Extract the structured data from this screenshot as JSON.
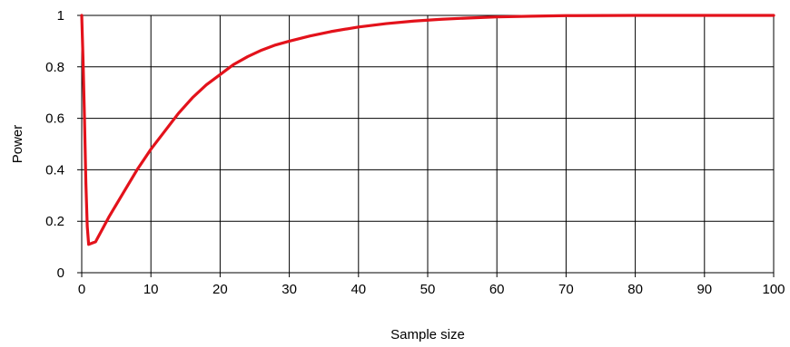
{
  "chart_data": {
    "type": "line",
    "title": "",
    "xlabel": "Sample size",
    "ylabel": "Power",
    "xlim": [
      0,
      100
    ],
    "ylim": [
      0,
      1
    ],
    "x_ticks": [
      0,
      10,
      20,
      30,
      40,
      50,
      60,
      70,
      80,
      90,
      100
    ],
    "y_ticks": [
      0,
      0.2,
      0.4,
      0.6,
      0.8,
      1
    ],
    "y_tick_labels": [
      "0",
      "0.2",
      "0.4",
      "0.6",
      "0.8",
      "1"
    ],
    "grid": true,
    "legend": "none",
    "series": [
      {
        "color": "#e3121b",
        "x": [
          0,
          0.2,
          0.4,
          0.6,
          0.8,
          1,
          2,
          3,
          4,
          6,
          8,
          10,
          12,
          14,
          16,
          18,
          20,
          22,
          24,
          26,
          28,
          30,
          33,
          36,
          40,
          44,
          48,
          52,
          56,
          60,
          65,
          70,
          80,
          90,
          100
        ],
        "y": [
          1.0,
          0.82,
          0.6,
          0.35,
          0.18,
          0.11,
          0.12,
          0.17,
          0.22,
          0.31,
          0.4,
          0.48,
          0.55,
          0.62,
          0.68,
          0.73,
          0.77,
          0.81,
          0.84,
          0.865,
          0.885,
          0.9,
          0.92,
          0.937,
          0.955,
          0.968,
          0.978,
          0.985,
          0.99,
          0.994,
          0.997,
          0.999,
          1.0,
          1.0,
          1.0
        ]
      }
    ]
  }
}
